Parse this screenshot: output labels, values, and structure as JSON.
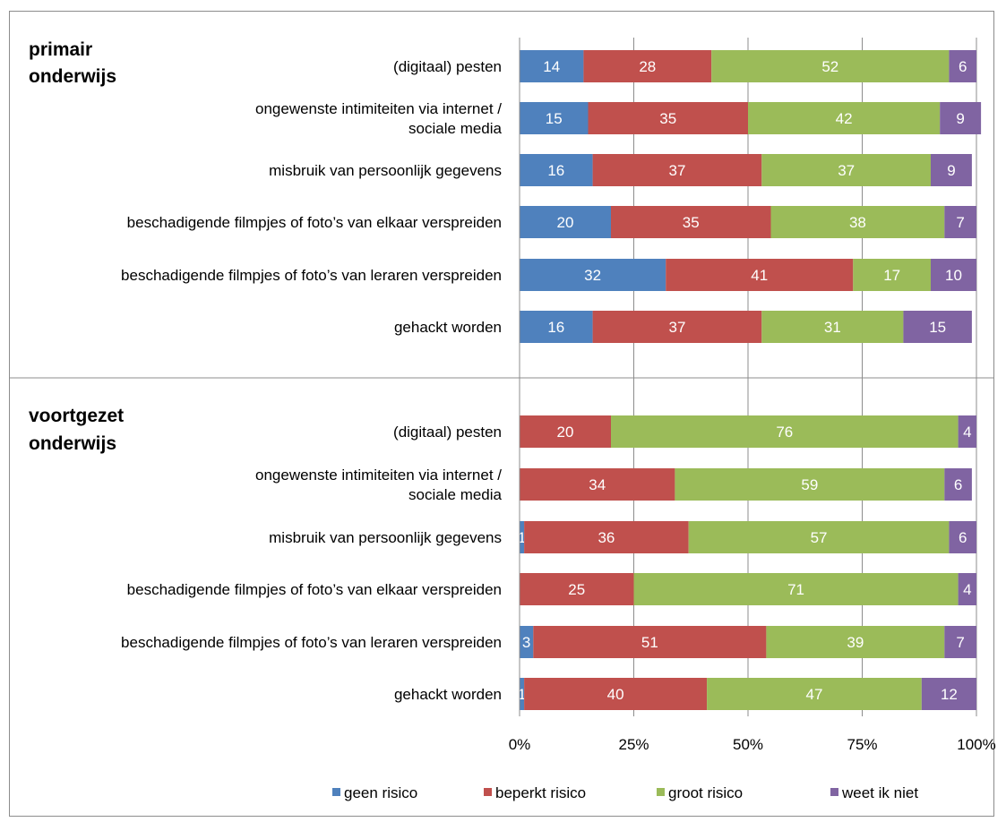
{
  "chart_data": {
    "type": "bar",
    "orientation": "horizontal",
    "stacked": "percent",
    "xlim": [
      0,
      100
    ],
    "ticks": [
      "0%",
      "25%",
      "50%",
      "75%",
      "100%"
    ],
    "grid": true,
    "legend_position": "bottom",
    "series": [
      {
        "name": "geen risico",
        "color": "#4f81bd"
      },
      {
        "name": "beperkt risico",
        "color": "#c0504d"
      },
      {
        "name": "groot risico",
        "color": "#9bbb59"
      },
      {
        "name": "weet ik niet",
        "color": "#8064a2"
      }
    ],
    "groups": [
      {
        "label": [
          "primair",
          "onderwijs"
        ],
        "categories": [
          {
            "label": [
              "(digitaal) pesten"
            ],
            "values": [
              14,
              28,
              52,
              6
            ]
          },
          {
            "label": [
              "ongewenste intimiteiten via internet /",
              "sociale media"
            ],
            "values": [
              15,
              35,
              42,
              9
            ]
          },
          {
            "label": [
              "misbruik van persoonlijk gegevens"
            ],
            "values": [
              16,
              37,
              37,
              9
            ]
          },
          {
            "label": [
              "beschadigende filmpjes of foto’s van elkaar verspreiden"
            ],
            "values": [
              20,
              35,
              38,
              7
            ]
          },
          {
            "label": [
              "beschadigende filmpjes of foto’s van leraren verspreiden"
            ],
            "values": [
              32,
              41,
              17,
              10
            ]
          },
          {
            "label": [
              "gehackt worden"
            ],
            "values": [
              16,
              37,
              31,
              15
            ]
          }
        ]
      },
      {
        "label": [
          "voortgezet",
          "onderwijs"
        ],
        "categories": [
          {
            "label": [
              "(digitaal) pesten"
            ],
            "values": [
              0,
              20,
              76,
              4
            ]
          },
          {
            "label": [
              "ongewenste intimiteiten via internet /",
              "sociale media"
            ],
            "values": [
              0,
              34,
              59,
              6
            ]
          },
          {
            "label": [
              "misbruik van persoonlijk gegevens"
            ],
            "values": [
              1,
              36,
              57,
              6
            ]
          },
          {
            "label": [
              "beschadigende filmpjes of foto’s van elkaar verspreiden"
            ],
            "values": [
              0,
              25,
              71,
              4
            ]
          },
          {
            "label": [
              "beschadigende filmpjes of foto’s van leraren verspreiden"
            ],
            "values": [
              3,
              51,
              39,
              7
            ]
          },
          {
            "label": [
              "gehackt worden"
            ],
            "values": [
              1,
              40,
              47,
              12
            ]
          }
        ]
      }
    ]
  }
}
